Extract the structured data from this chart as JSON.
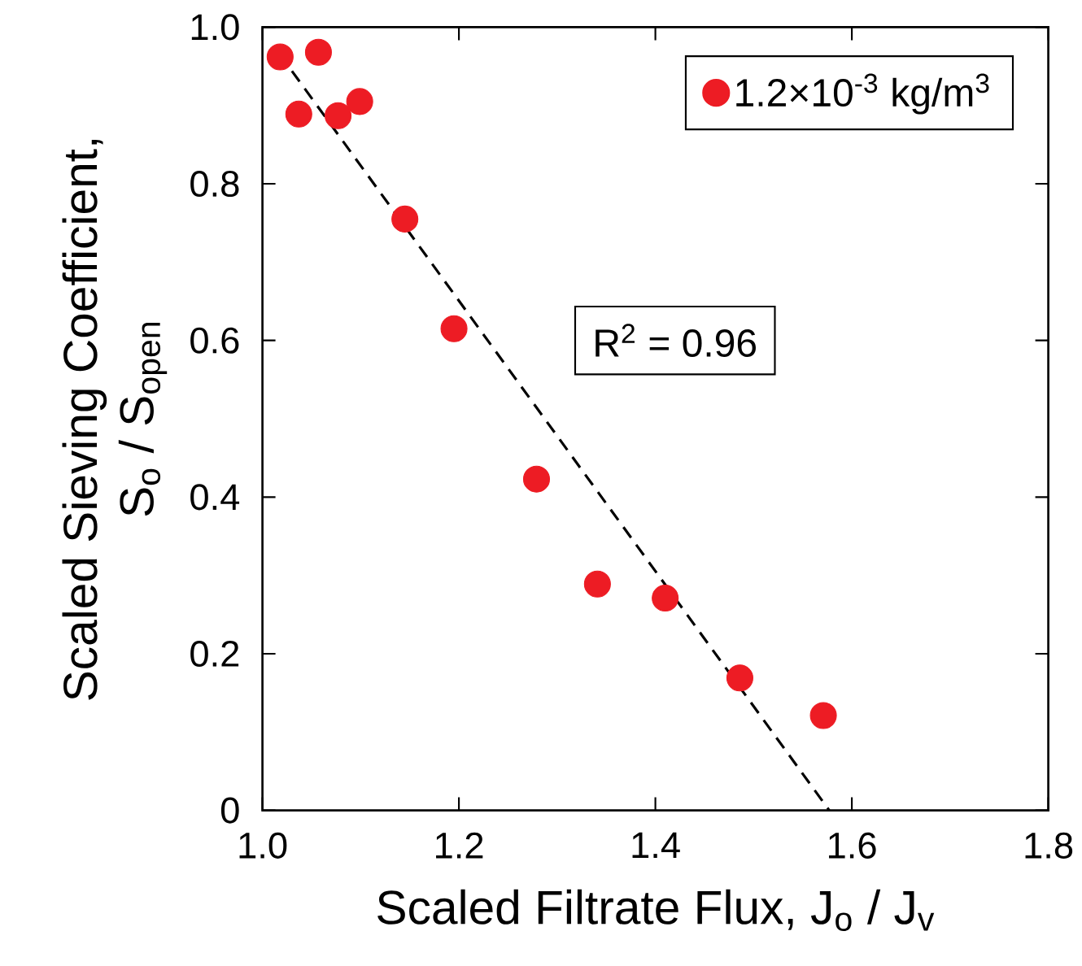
{
  "chart_data": {
    "type": "scatter",
    "xlabel": "Scaled Filtrate Flux, J$_{o}$ / J$_{v}$",
    "ylabel": "Scaled Sieving Coefficient, S$_{o}$ / S$_{open}$",
    "xlim": [
      1.0,
      1.8
    ],
    "ylim": [
      0,
      1.0
    ],
    "xticks": [
      {
        "value": 1.0,
        "label": "1.0"
      },
      1.2,
      1.4,
      1.6,
      1.8
    ],
    "yticks": [
      0,
      0.2,
      0.4,
      0.6,
      0.8,
      {
        "value": 1.0,
        "label": "1.0"
      }
    ],
    "marker": "circle",
    "legend": "top right",
    "grid": false,
    "annotations": [
      "R$^{2}$ = 0.96"
    ],
    "series": [
      {
        "name": "1.2×10$^{-3}$ kg/m$^{3}$",
        "color": "#ed1c24",
        "x": [
          1.018,
          1.057,
          1.037,
          1.077,
          1.099,
          1.145,
          1.195,
          1.279,
          1.341,
          1.41,
          1.486,
          1.571
        ],
        "values": [
          0.962,
          0.968,
          0.889,
          0.887,
          0.905,
          0.755,
          0.615,
          0.423,
          0.289,
          0.271,
          0.169,
          0.121
        ]
      },
      {
        "type": "line",
        "color": "#000000",
        "line_style": "dashed",
        "marker": "none",
        "x": [
          1.03,
          1.577
        ],
        "values": [
          0.944,
          0
        ]
      }
    ]
  }
}
